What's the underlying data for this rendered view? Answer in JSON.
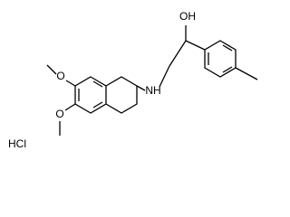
{
  "atoms": {
    "o_upper": "O",
    "o_lower": "O",
    "amine": "NH",
    "hydroxyl": "OH"
  },
  "salt": "HCl"
}
